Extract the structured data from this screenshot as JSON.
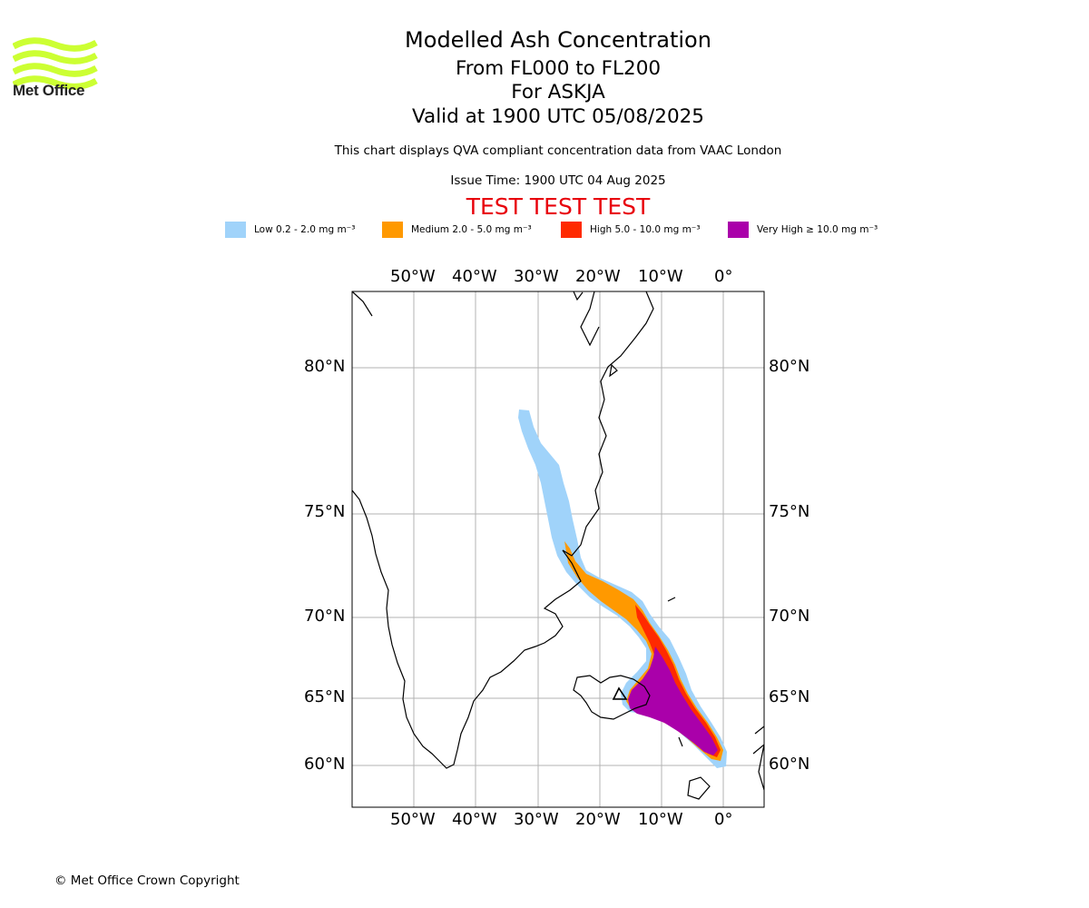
{
  "logo": {
    "text": "Met Office",
    "color": "#ccff33"
  },
  "header": {
    "title": "Modelled Ash Concentration",
    "level_range": "From FL000 to FL200",
    "volcano": "For ASKJA",
    "valid_time": "Valid at 1900 UTC 05/08/2025",
    "description": "This chart displays QVA compliant concentration data from VAAC London",
    "issue_time": "Issue Time: 1900 UTC 04 Aug 2025",
    "test_banner": "TEST TEST TEST"
  },
  "legend": [
    {
      "label": "Low 0.2 - 2.0 mg m⁻³",
      "color": "#a0d3fa"
    },
    {
      "label": "Medium 2.0 - 5.0 mg m⁻³",
      "color": "#ff9900"
    },
    {
      "label": "High 5.0 - 10.0 mg m⁻³",
      "color": "#ff2a00"
    },
    {
      "label": "Very High ≥ 10.0 mg m⁻³",
      "color": "#aa00aa"
    }
  ],
  "map": {
    "longitude_labels": [
      "50°W",
      "40°W",
      "30°W",
      "20°W",
      "10°W",
      "0°"
    ],
    "latitude_labels": [
      "80°N",
      "75°N",
      "70°N",
      "65°N",
      "60°N"
    ],
    "grid": true
  },
  "footer": {
    "copyright": "© Met Office Crown Copyright"
  }
}
